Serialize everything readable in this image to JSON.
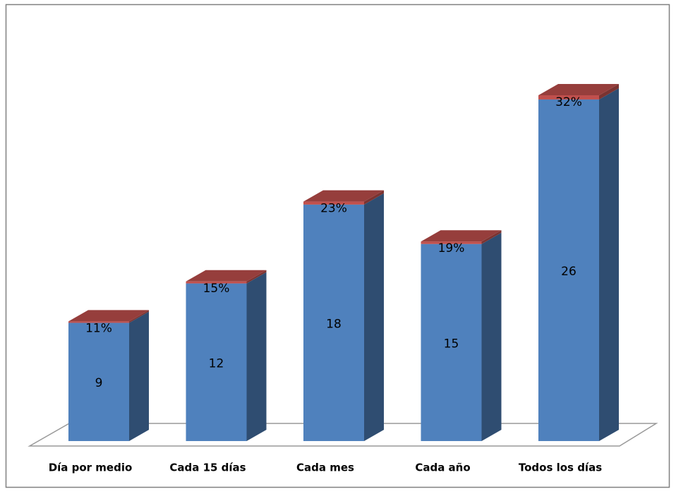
{
  "chart_data": {
    "type": "bar3d_stacked",
    "categories": [
      "Día por medio",
      "Cada 15 días",
      "Cada mes",
      "Cada año",
      "Todos los días"
    ],
    "series": [
      {
        "color": "#4f81bd",
        "values": [
          9,
          12,
          18,
          15,
          26
        ]
      },
      {
        "color": "#c0504d",
        "values": [
          0.11,
          0.15,
          0.23,
          0.19,
          0.32
        ],
        "value_labels": [
          "11%",
          "15%",
          "23%",
          "19%",
          "32%"
        ]
      }
    ]
  }
}
